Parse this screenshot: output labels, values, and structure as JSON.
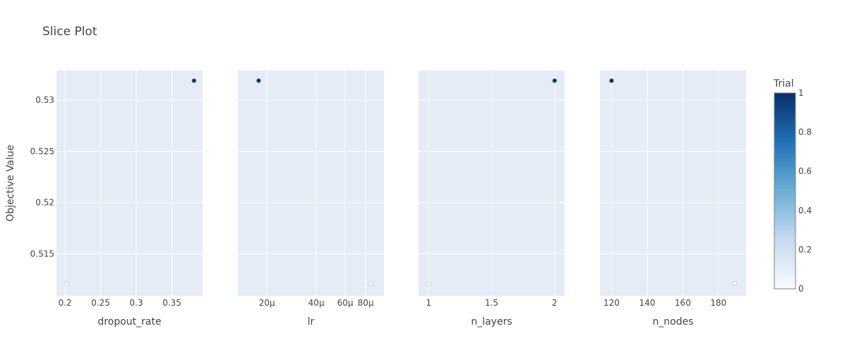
{
  "chart_data": {
    "type": "scatter",
    "title": "Slice Plot",
    "ylabel": "Objective Value",
    "ylim": [
      0.5109,
      0.5329
    ],
    "yticks": [
      0.515,
      0.52,
      0.525,
      0.53
    ],
    "ytick_labels": [
      "0.515",
      "0.52",
      "0.525",
      "0.53"
    ],
    "grid": true,
    "subplots": [
      {
        "xlabel": "dropout_rate",
        "scale": "linear",
        "xlim": [
          0.188,
          0.393
        ],
        "xticks": [
          0.2,
          0.25,
          0.3,
          0.35
        ],
        "xtick_labels": [
          "0.2",
          "0.25",
          "0.3",
          "0.35"
        ],
        "points": [
          {
            "x": 0.202,
            "y": 0.5121,
            "trial": 0
          },
          {
            "x": 0.381,
            "y": 0.5319,
            "trial": 1
          }
        ]
      },
      {
        "xlabel": "lr",
        "scale": "log",
        "xlim": [
          1.33e-05,
          0.0001034
        ],
        "xticks": [
          2e-05,
          4e-05,
          6e-05,
          8e-05
        ],
        "xtick_labels": [
          "20μ",
          "40μ",
          "60μ",
          "80μ"
        ],
        "points": [
          {
            "x": 1.78e-05,
            "y": 0.5319,
            "trial": 1
          },
          {
            "x": 8.54e-05,
            "y": 0.5121,
            "trial": 0
          }
        ]
      },
      {
        "xlabel": "n_layers",
        "scale": "linear",
        "xlim": [
          0.92,
          2.08
        ],
        "xticks": [
          1,
          1.5,
          2
        ],
        "xtick_labels": [
          "1",
          "1.5",
          "2"
        ],
        "points": [
          {
            "x": 1,
            "y": 0.5121,
            "trial": 0
          },
          {
            "x": 2,
            "y": 0.5319,
            "trial": 1
          }
        ]
      },
      {
        "xlabel": "n_nodes",
        "scale": "linear",
        "xlim": [
          113.5,
          195.5
        ],
        "xticks": [
          120,
          140,
          160,
          180
        ],
        "xtick_labels": [
          "120",
          "140",
          "160",
          "180"
        ],
        "points": [
          {
            "x": 120,
            "y": 0.5319,
            "trial": 1
          },
          {
            "x": 189,
            "y": 0.5121,
            "trial": 0
          }
        ]
      }
    ],
    "colorbar": {
      "title": "Trial",
      "min": 0,
      "max": 1,
      "ticks": [
        0,
        0.2,
        0.4,
        0.6,
        0.8,
        1
      ],
      "tick_labels": [
        "0",
        "0.2",
        "0.4",
        "0.6",
        "0.8",
        "1"
      ],
      "colors": [
        "#f7fbff",
        "#c6dbef",
        "#6baed6",
        "#2171b5",
        "#08306b"
      ]
    },
    "colors": {
      "plot_bg": "#e5ecf6",
      "grid": "#ffffff",
      "text": "#444444",
      "title": "#444444"
    }
  }
}
